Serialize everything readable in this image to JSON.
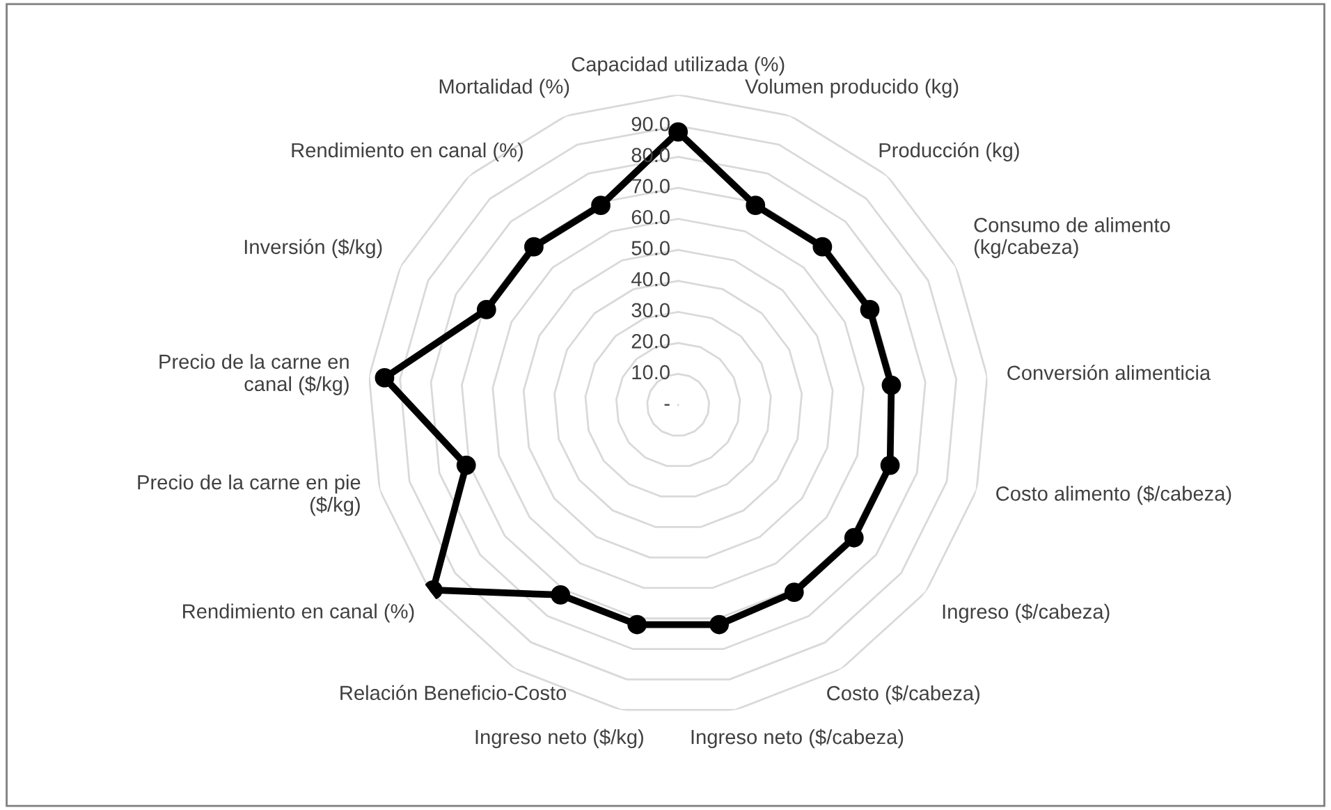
{
  "chart_data": {
    "type": "radar",
    "categories": [
      "Capacidad utilizada (%)",
      "Volumen producido (kg)",
      "Producción (kg)",
      "Consumo de alimento\n(kg/cabeza)",
      "Conversión alimenticia",
      "Costo alimento ($/cabeza)",
      "Ingreso ($/cabeza)",
      "Costo ($/cabeza)",
      "Ingreso neto ($/cabeza)",
      "Ingreso neto ($/kg)",
      "Relación Beneficio-Costo",
      "Rendimiento en canal (%)",
      "Precio de la carne en pie\n($/kg)",
      "Precio de la carne en\ncanal ($/kg)",
      "Inversión ($/kg)",
      "Rendimiento en canal (%)",
      "Mortalidad (%)"
    ],
    "series": [
      {
        "color": "#000000",
        "values": [
          88,
          69,
          69,
          69,
          69,
          71,
          71,
          71,
          72,
          72,
          72,
          99,
          71,
          95,
          69,
          69,
          69
        ]
      }
    ],
    "ylim": [
      0,
      100
    ],
    "yticks": [
      {
        "value": 0,
        "label": "-"
      },
      {
        "value": 10,
        "label": "10.0"
      },
      {
        "value": 20,
        "label": "20.0"
      },
      {
        "value": 30,
        "label": "30.0"
      },
      {
        "value": 40,
        "label": "40.0"
      },
      {
        "value": 50,
        "label": "50.0"
      },
      {
        "value": 60,
        "label": "60.0"
      },
      {
        "value": 70,
        "label": "70.0"
      },
      {
        "value": 80,
        "label": "80.0"
      },
      {
        "value": 90,
        "label": "90.0"
      }
    ],
    "grid": true,
    "marker": "circle",
    "line_style": "solid"
  }
}
